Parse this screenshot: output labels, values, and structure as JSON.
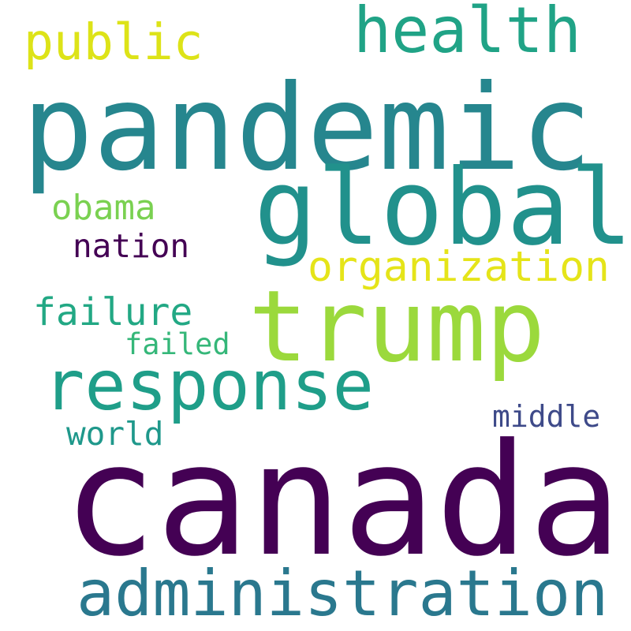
{
  "words": {
    "canada": {
      "text": "canada",
      "color": "#440154"
    },
    "pandemic": {
      "text": "pandemic",
      "color": "#26868e"
    },
    "global": {
      "text": "global",
      "color": "#21918c"
    },
    "trump": {
      "text": "trump",
      "color": "#9bd93c"
    },
    "response": {
      "text": "response",
      "color": "#1f9e89"
    },
    "administration": {
      "text": "administration",
      "color": "#2a788e"
    },
    "health": {
      "text": "health",
      "color": "#20a386"
    },
    "public": {
      "text": "public",
      "color": "#dde318"
    },
    "organization": {
      "text": "organization",
      "color": "#e5e419"
    },
    "failure": {
      "text": "failure",
      "color": "#22a884"
    },
    "obama": {
      "text": "obama",
      "color": "#7ad151"
    },
    "nation": {
      "text": "nation",
      "color": "#440154"
    },
    "world": {
      "text": "world",
      "color": "#1f988b"
    },
    "middle": {
      "text": "middle",
      "color": "#3e4a89"
    },
    "failed": {
      "text": "failed",
      "color": "#35b779"
    }
  }
}
